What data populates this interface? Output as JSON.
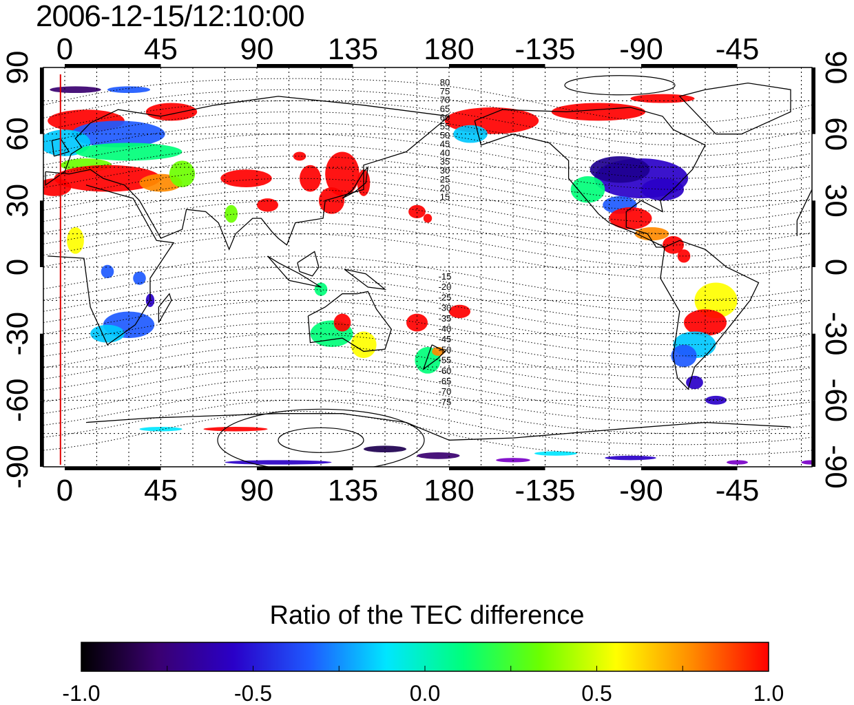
{
  "timestamp": "2006-12-15/12:10:00",
  "map": {
    "lon_ticks": [
      "0",
      "45",
      "90",
      "135",
      "180",
      "-135",
      "-90",
      "-45"
    ],
    "lat_ticks": [
      "90",
      "60",
      "30",
      "0",
      "-30",
      "-60",
      "-90"
    ],
    "mlat_contours_north": [
      "80",
      "75",
      "70",
      "65",
      "60",
      "55",
      "50",
      "45",
      "40",
      "35",
      "30",
      "25",
      "20",
      "15"
    ],
    "mlat_contours_south": [
      "-15",
      "-20",
      "-25",
      "-30",
      "-35",
      "-40",
      "-45",
      "-50",
      "-55",
      "-60",
      "-65",
      "-70",
      "-75"
    ],
    "marker_longitude": "-2",
    "marker_color": "#e00000"
  },
  "colorbar": {
    "title": "Ratio of the TEC difference",
    "ticks": [
      "-1.0",
      "-0.5",
      "0.0",
      "0.5",
      "1.0"
    ],
    "range": [
      -1.0,
      1.0
    ],
    "colors": [
      "#000000",
      "#3a0070",
      "#2a00c8",
      "#1e5aff",
      "#00e6ff",
      "#00ff7a",
      "#6cff00",
      "#ffff00",
      "#ff8a00",
      "#ff0000"
    ]
  }
}
